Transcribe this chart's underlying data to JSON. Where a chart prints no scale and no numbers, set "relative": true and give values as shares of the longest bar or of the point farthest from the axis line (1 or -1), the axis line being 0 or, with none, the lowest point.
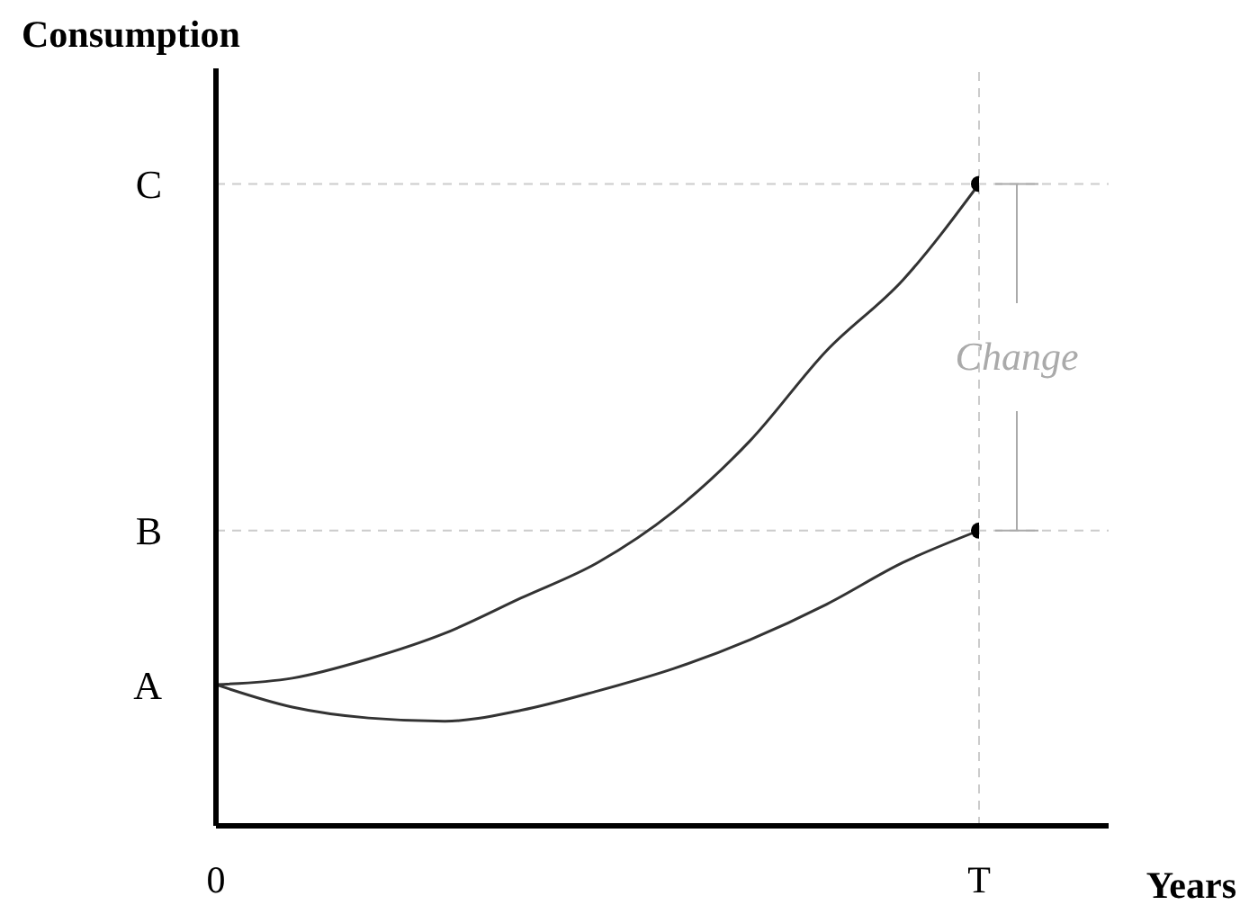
{
  "chart_data": {
    "type": "line",
    "relative": true,
    "ylabel": "Consumption",
    "xlabel": "Years",
    "categories": [
      "0",
      null,
      null,
      null,
      null,
      null,
      null,
      null,
      null,
      null,
      "T"
    ],
    "marker": "none",
    "line_style": "solid",
    "series": [
      {
        "color": "#333333",
        "values": [
          0.22,
          0.23,
          0.26,
          0.3,
          0.355,
          0.41,
          0.49,
          0.6,
          0.74,
          0.85,
          1
        ]
      },
      {
        "color": "#333333",
        "values": [
          0.22,
          0.185,
          0.168,
          0.163,
          0.18,
          0.21,
          0.245,
          0.29,
          0.345,
          0.41,
          0.46
        ]
      },
      {
        "type": "scatter",
        "color": "#000000",
        "marker": "circle",
        "values": [
          null,
          null,
          null,
          null,
          null,
          null,
          null,
          null,
          null,
          null,
          1
        ]
      },
      {
        "type": "scatter",
        "color": "#000000",
        "marker": "circle",
        "values": [
          null,
          null,
          null,
          null,
          null,
          null,
          null,
          null,
          null,
          null,
          0.46
        ]
      }
    ],
    "ref_lines": [
      {
        "axis": "y",
        "value": 1,
        "label": "C",
        "color": "#cccccc",
        "line_style": "dashed"
      },
      {
        "axis": "y",
        "value": 0.46,
        "label": "B",
        "color": "#cccccc",
        "line_style": "dashed"
      },
      {
        "axis": "x",
        "value": "T",
        "label": null,
        "color": "#cccccc",
        "line_style": "dashed"
      }
    ],
    "annotations": [
      {
        "text": "A",
        "x": "0",
        "y": 0.22
      },
      "Change"
    ]
  }
}
